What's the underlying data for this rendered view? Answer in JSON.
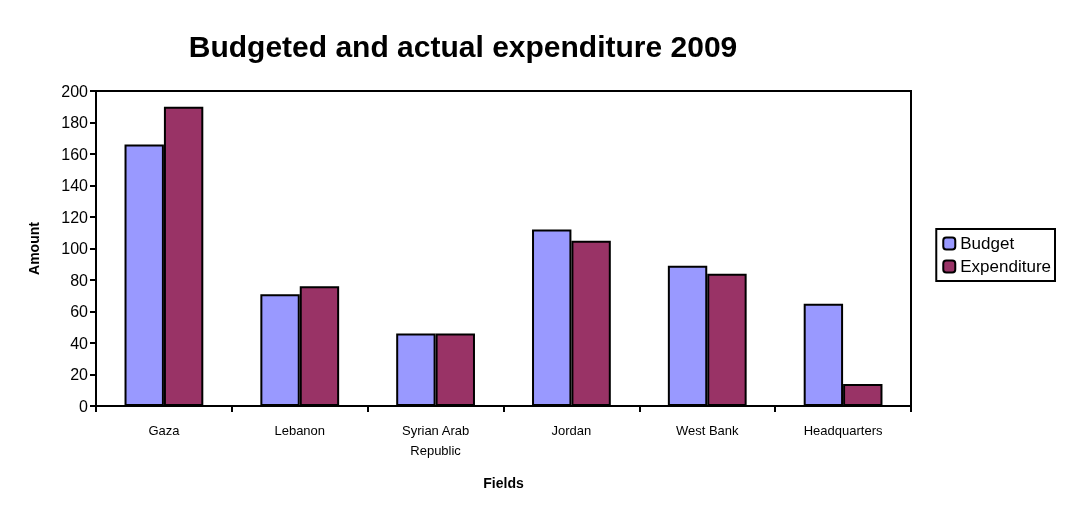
{
  "chart_data": {
    "type": "bar",
    "title": "Budgeted and actual expenditure 2009",
    "xlabel": "Fields",
    "ylabel": "Amount",
    "categories": [
      "Gaza",
      "Lebanon",
      "Syrian Arab\nRepublic",
      "Jordan",
      "West Bank",
      "Headquarters"
    ],
    "series": [
      {
        "name": "Budget",
        "color": "#9999ff",
        "values": [
          166,
          71,
          46,
          112,
          89,
          65
        ]
      },
      {
        "name": "Expenditure",
        "color": "#993366",
        "values": [
          190,
          76,
          46,
          105,
          84,
          14
        ]
      }
    ],
    "ylim": [
      0,
      200
    ],
    "yticks": [
      0,
      20,
      40,
      60,
      80,
      100,
      120,
      140,
      160,
      180,
      200
    ],
    "grid": false,
    "legend": "right"
  }
}
